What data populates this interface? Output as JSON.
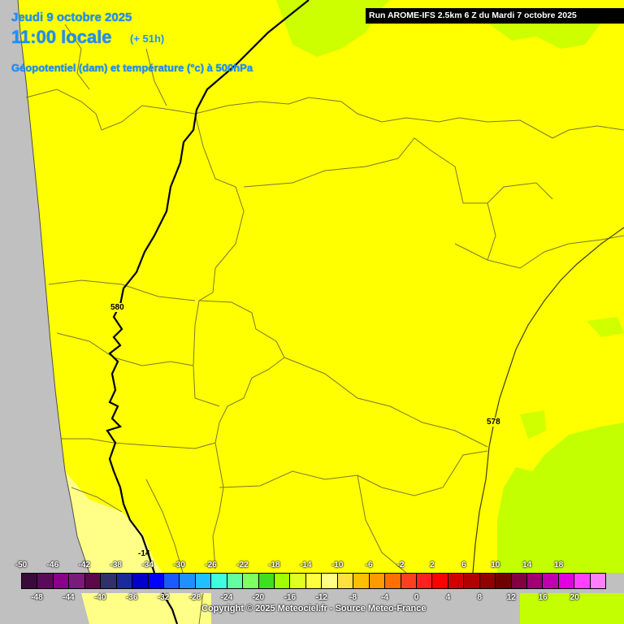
{
  "header": {
    "date": "Jeudi 9 octobre 2025",
    "hour": "11:00 locale",
    "lead": "(+ 51h)",
    "subtitle": "Géopotentiel (dam) et température (°c) à 500hPa",
    "run": "Run AROME-IFS 2.5km 6 Z du Mardi 7 octobre 2025"
  },
  "map": {
    "isolines": [
      {
        "label": "580"
      },
      {
        "label": "578"
      }
    ],
    "temperature_label": "-14",
    "colors": {
      "sea": "#c0c0c0",
      "main_field": "#ffff00",
      "warm_zone": "#ffff88",
      "cold_zone": "#c4ff00",
      "borders": "#808020",
      "isolines": "#000000"
    }
  },
  "scale": {
    "top_labels": [
      "-50",
      "-46",
      "-42",
      "-38",
      "-34",
      "-30",
      "-26",
      "-22",
      "-18",
      "-14",
      "-10",
      "-6",
      "-2",
      "2",
      "6",
      "10",
      "14",
      "18"
    ],
    "bottom_labels": [
      "-48",
      "-44",
      "-40",
      "-36",
      "-32",
      "-28",
      "-24",
      "-20",
      "-16",
      "-12",
      "-8",
      "-4",
      "0",
      "4",
      "8",
      "12",
      "16",
      "20"
    ],
    "colors": [
      "#3a0a3a",
      "#5a0a5a",
      "#8a008a",
      "#7a1a7a",
      "#5a0a4a",
      "#30306a",
      "#1a2a9a",
      "#0000c8",
      "#0000ff",
      "#1a5aff",
      "#1e90ff",
      "#20c0ff",
      "#40ffe0",
      "#60ffa0",
      "#80ff60",
      "#40e020",
      "#a0ff00",
      "#e0ff20",
      "#ffff40",
      "#ffff88",
      "#ffe040",
      "#ffc000",
      "#ff9a00",
      "#ff7000",
      "#ff4020",
      "#ff2020",
      "#ff0000",
      "#d00000",
      "#b00000",
      "#900000",
      "#700000",
      "#800040",
      "#a00070",
      "#c000b0",
      "#e000e0",
      "#ff40ff",
      "#ff80ff"
    ]
  },
  "footer": {
    "copyright": "Copyright © 2025 Meteociel.fr - Source Meteo-France"
  }
}
